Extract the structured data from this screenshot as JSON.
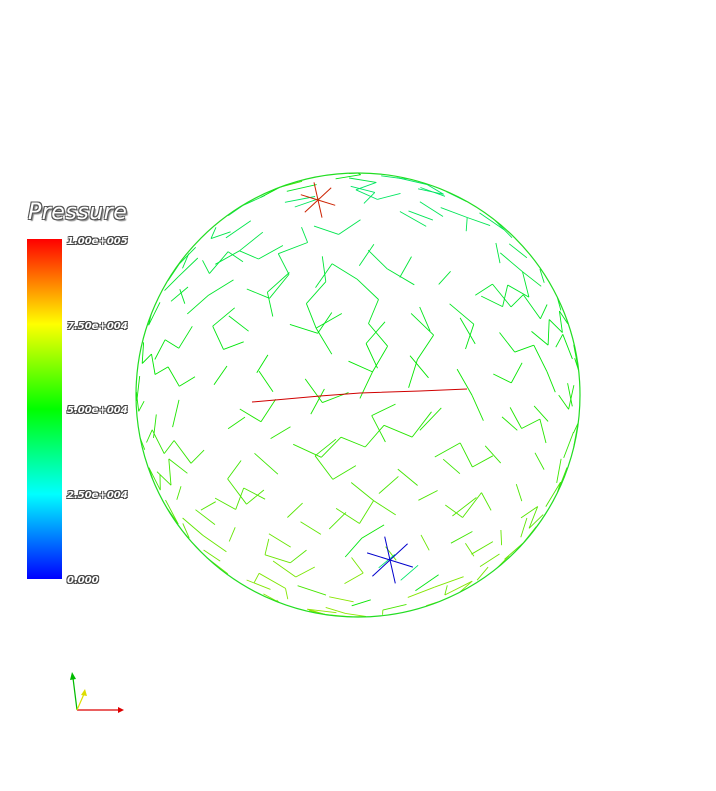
{
  "legend": {
    "title": "Pressure",
    "ticks": [
      "1.00e+005",
      "7.50e+004",
      "5.00e+004",
      "2.50e+004",
      "0.000"
    ],
    "range": [
      0,
      100000
    ],
    "colormap": [
      "#0000ff",
      "#00ffff",
      "#00ff00",
      "#ffff00",
      "#ff0000"
    ]
  },
  "mesh": {
    "shape": "sphere",
    "style": "wireframe",
    "dominant_color": "#00e000",
    "high_pressure_region": "top",
    "low_pressure_region": "bottom"
  },
  "axes": {
    "x_color": "#dd0000",
    "y_color": "#00bb00",
    "z_color": "#dddd00"
  }
}
